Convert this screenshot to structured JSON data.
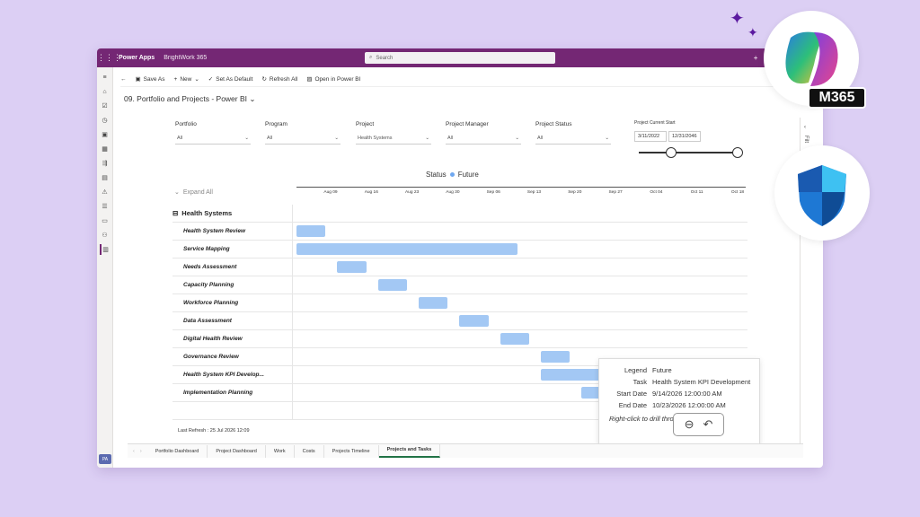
{
  "topbar": {
    "app_name": "Power Apps",
    "env_name": "BrightWork 365",
    "search_placeholder": "Search"
  },
  "commands": [
    "Save As",
    "New",
    "Set As Default",
    "Refresh All",
    "Open in Power BI"
  ],
  "page_title": "09. Portfolio and Projects - Power BI",
  "filters": [
    {
      "label": "Portfolio",
      "value": "All"
    },
    {
      "label": "Program",
      "value": "All"
    },
    {
      "label": "Project",
      "value": "Health Systems"
    },
    {
      "label": "Project Manager",
      "value": "All"
    },
    {
      "label": "Project Status",
      "value": "All"
    }
  ],
  "date_filter": {
    "label": "Project Current Start",
    "start": "3/11/2022",
    "end": "12/31/2046",
    "range": [
      0.0,
      1.0
    ]
  },
  "legend": {
    "title": "Status",
    "item": "Future",
    "color": "#6fa8f0"
  },
  "expand_all": "Expand All",
  "axis_ticks": [
    "Aug 09",
    "Aug 16",
    "Aug 23",
    "Aug 30",
    "Sep 06",
    "Sep 13",
    "Sep 20",
    "Sep 27",
    "Oct 04",
    "Oct 11",
    "Oct 18"
  ],
  "group": "Health Systems",
  "tasks": [
    {
      "name": "Health System Review",
      "start": "2026-08-03",
      "end": "2026-08-08"
    },
    {
      "name": "Service Mapping",
      "start": "2026-08-03",
      "end": "2026-09-10"
    },
    {
      "name": "Needs Assessment",
      "start": "2026-08-10",
      "end": "2026-08-15"
    },
    {
      "name": "Capacity Planning",
      "start": "2026-08-17",
      "end": "2026-08-22"
    },
    {
      "name": "Workforce Planning",
      "start": "2026-08-24",
      "end": "2026-08-29"
    },
    {
      "name": "Data Assessment",
      "start": "2026-08-31",
      "end": "2026-09-05"
    },
    {
      "name": "Digital Health Review",
      "start": "2026-09-07",
      "end": "2026-09-12"
    },
    {
      "name": "Governance Review",
      "start": "2026-09-14",
      "end": "2026-09-19"
    },
    {
      "name": "Health System KPI Develop...",
      "start": "2026-09-14",
      "end": "2026-10-23"
    },
    {
      "name": "Implementation Planning",
      "start": "2026-09-21",
      "end": "2026-09-26"
    },
    {
      "name": "",
      "start": "2026-09-28",
      "end": "2026-10-03"
    }
  ],
  "tooltip": {
    "legend_label": "Legend",
    "legend_value": "Future",
    "task_label": "Task",
    "task_value": "Health System KPI Development",
    "start_label": "Start Date",
    "start_value": "9/14/2026 12:00:00 AM",
    "end_label": "End Date",
    "end_value": "10/23/2026 12:00:00 AM",
    "footer": "Right-click to drill through"
  },
  "last_refresh_label": "Last Refresh :",
  "last_refresh_value": "25 Jul 2026 12:09",
  "tabs": [
    "Portfolio Dashboard",
    "Project Dashboard",
    "Work",
    "Costs",
    "Projects Timeline",
    "Projects and Tasks"
  ],
  "active_tab": 5,
  "pa_badge": "PA",
  "right_pane": "Filt",
  "badges": {
    "m365": "M365"
  }
}
